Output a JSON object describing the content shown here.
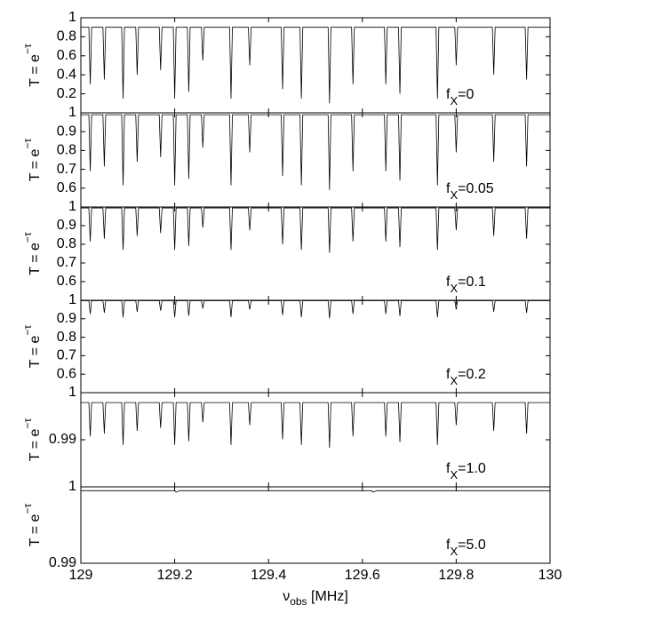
{
  "chart_data": [
    {
      "type": "line",
      "ylabel": [
        "T = e",
        "−τ"
      ],
      "annotation": [
        "f",
        "X",
        "=0"
      ],
      "xlim": [
        129,
        130
      ],
      "ylim": [
        0,
        1
      ],
      "yticks": [
        0.2,
        0.4,
        0.6,
        0.8,
        1
      ],
      "color": "#000000",
      "x": [
        129,
        129.017,
        129.02,
        129.023,
        129.047,
        129.05,
        129.053,
        129.087,
        129.09,
        129.093,
        129.117,
        129.12,
        129.123,
        129.167,
        129.17,
        129.173,
        129.197,
        129.2,
        129.203,
        129.227,
        129.23,
        129.233,
        129.257,
        129.26,
        129.263,
        129.317,
        129.32,
        129.323,
        129.357,
        129.36,
        129.363,
        129.427,
        129.43,
        129.433,
        129.467,
        129.47,
        129.473,
        129.527,
        129.53,
        129.533,
        129.577,
        129.58,
        129.583,
        129.647,
        129.65,
        129.653,
        129.677,
        129.68,
        129.683,
        129.757,
        129.76,
        129.763,
        129.797,
        129.8,
        129.803,
        129.877,
        129.88,
        129.883,
        129.947,
        129.95,
        129.953,
        130
      ],
      "values": [
        0.9,
        0.9,
        0.3,
        0.9,
        0.9,
        0.35,
        0.9,
        0.9,
        0.15,
        0.9,
        0.9,
        0.4,
        0.9,
        0.9,
        0.45,
        0.9,
        0.9,
        0.15,
        0.9,
        0.9,
        0.22,
        0.9,
        0.9,
        0.55,
        0.9,
        0.9,
        0.15,
        0.9,
        0.9,
        0.5,
        0.9,
        0.9,
        0.25,
        0.9,
        0.9,
        0.15,
        0.9,
        0.9,
        0.1,
        0.9,
        0.9,
        0.3,
        0.9,
        0.9,
        0.3,
        0.9,
        0.9,
        0.2,
        0.9,
        0.9,
        0.15,
        0.9,
        0.9,
        0.5,
        0.9,
        0.9,
        0.4,
        0.9,
        0.9,
        0.35,
        0.9,
        0.9
      ]
    },
    {
      "type": "line",
      "ylabel": [
        "T = e",
        "−τ"
      ],
      "annotation": [
        "f",
        "X",
        "=0.05"
      ],
      "xlim": [
        129,
        130
      ],
      "ylim": [
        0.5,
        1
      ],
      "yticks": [
        0.6,
        0.7,
        0.8,
        0.9,
        1
      ],
      "color": "#000000",
      "x": [
        129,
        129.017,
        129.02,
        129.023,
        129.047,
        129.05,
        129.053,
        129.087,
        129.09,
        129.093,
        129.117,
        129.12,
        129.123,
        129.167,
        129.17,
        129.173,
        129.197,
        129.2,
        129.203,
        129.227,
        129.23,
        129.233,
        129.257,
        129.26,
        129.263,
        129.317,
        129.32,
        129.323,
        129.357,
        129.36,
        129.363,
        129.427,
        129.43,
        129.433,
        129.467,
        129.47,
        129.473,
        129.527,
        129.53,
        129.533,
        129.577,
        129.58,
        129.583,
        129.647,
        129.65,
        129.653,
        129.677,
        129.68,
        129.683,
        129.757,
        129.76,
        129.763,
        129.797,
        129.8,
        129.803,
        129.877,
        129.88,
        129.883,
        129.947,
        129.95,
        129.953,
        130
      ],
      "values": [
        0.99,
        0.99,
        0.69,
        0.99,
        0.99,
        0.715,
        0.99,
        0.99,
        0.615,
        0.99,
        0.99,
        0.74,
        0.99,
        0.99,
        0.765,
        0.99,
        0.99,
        0.615,
        0.99,
        0.99,
        0.65,
        0.99,
        0.99,
        0.815,
        0.99,
        0.99,
        0.615,
        0.99,
        0.99,
        0.79,
        0.99,
        0.99,
        0.665,
        0.99,
        0.99,
        0.615,
        0.99,
        0.99,
        0.59,
        0.99,
        0.99,
        0.69,
        0.99,
        0.99,
        0.69,
        0.99,
        0.99,
        0.64,
        0.99,
        0.99,
        0.615,
        0.99,
        0.99,
        0.79,
        0.99,
        0.99,
        0.74,
        0.99,
        0.99,
        0.715,
        0.99,
        0.99
      ]
    },
    {
      "type": "line",
      "ylabel": [
        "T = e",
        "−τ"
      ],
      "annotation": [
        "f",
        "X",
        "=0.1"
      ],
      "xlim": [
        129,
        130
      ],
      "ylim": [
        0.5,
        1
      ],
      "yticks": [
        0.6,
        0.7,
        0.8,
        0.9,
        1
      ],
      "color": "#000000",
      "x": [
        129,
        129.017,
        129.02,
        129.023,
        129.047,
        129.05,
        129.053,
        129.087,
        129.09,
        129.093,
        129.117,
        129.12,
        129.123,
        129.167,
        129.17,
        129.173,
        129.197,
        129.2,
        129.203,
        129.227,
        129.23,
        129.233,
        129.257,
        129.26,
        129.263,
        129.317,
        129.32,
        129.323,
        129.357,
        129.36,
        129.363,
        129.427,
        129.43,
        129.433,
        129.467,
        129.47,
        129.473,
        129.527,
        129.53,
        129.533,
        129.577,
        129.58,
        129.583,
        129.647,
        129.65,
        129.653,
        129.677,
        129.68,
        129.683,
        129.757,
        129.76,
        129.763,
        129.797,
        129.8,
        129.803,
        129.877,
        129.88,
        129.883,
        129.947,
        129.95,
        129.953,
        130
      ],
      "values": [
        0.995,
        0.995,
        0.815,
        0.995,
        0.995,
        0.83,
        0.995,
        0.995,
        0.77,
        0.995,
        0.995,
        0.845,
        0.995,
        0.995,
        0.86,
        0.995,
        0.995,
        0.77,
        0.995,
        0.995,
        0.791,
        0.995,
        0.995,
        0.89,
        0.995,
        0.995,
        0.77,
        0.995,
        0.995,
        0.875,
        0.995,
        0.995,
        0.8,
        0.995,
        0.995,
        0.77,
        0.995,
        0.995,
        0.755,
        0.995,
        0.995,
        0.815,
        0.995,
        0.995,
        0.815,
        0.995,
        0.995,
        0.785,
        0.995,
        0.995,
        0.77,
        0.995,
        0.995,
        0.875,
        0.995,
        0.995,
        0.845,
        0.995,
        0.995,
        0.83,
        0.995,
        0.995
      ]
    },
    {
      "type": "line",
      "ylabel": [
        "T = e",
        "−τ"
      ],
      "annotation": [
        "f",
        "X",
        "=0.2"
      ],
      "xlim": [
        129,
        130
      ],
      "ylim": [
        0.5,
        1
      ],
      "yticks": [
        0.6,
        0.7,
        0.8,
        0.9,
        1
      ],
      "color": "#000000",
      "x": [
        129,
        129.017,
        129.02,
        129.023,
        129.047,
        129.05,
        129.053,
        129.087,
        129.09,
        129.093,
        129.117,
        129.12,
        129.123,
        129.167,
        129.17,
        129.173,
        129.197,
        129.2,
        129.203,
        129.227,
        129.23,
        129.233,
        129.257,
        129.26,
        129.263,
        129.317,
        129.32,
        129.323,
        129.357,
        129.36,
        129.363,
        129.427,
        129.43,
        129.433,
        129.467,
        129.47,
        129.473,
        129.527,
        129.53,
        129.533,
        129.577,
        129.58,
        129.583,
        129.647,
        129.65,
        129.653,
        129.677,
        129.68,
        129.683,
        129.757,
        129.76,
        129.763,
        129.797,
        129.8,
        129.803,
        129.877,
        129.88,
        129.883,
        129.947,
        129.95,
        129.953,
        130
      ],
      "values": [
        0.998,
        0.998,
        0.926,
        0.998,
        0.998,
        0.932,
        0.998,
        0.998,
        0.908,
        0.998,
        0.998,
        0.938,
        0.998,
        0.998,
        0.944,
        0.998,
        0.998,
        0.908,
        0.998,
        0.998,
        0.916,
        0.998,
        0.998,
        0.956,
        0.998,
        0.998,
        0.908,
        0.998,
        0.998,
        0.95,
        0.998,
        0.998,
        0.92,
        0.998,
        0.998,
        0.908,
        0.998,
        0.998,
        0.902,
        0.998,
        0.998,
        0.926,
        0.998,
        0.998,
        0.926,
        0.998,
        0.998,
        0.914,
        0.998,
        0.998,
        0.908,
        0.998,
        0.998,
        0.95,
        0.998,
        0.998,
        0.938,
        0.998,
        0.998,
        0.932,
        0.998,
        0.998
      ]
    },
    {
      "type": "line",
      "ylabel": [
        "T = e",
        "−τ"
      ],
      "annotation": [
        "f",
        "X",
        "=1.0"
      ],
      "xlim": [
        129,
        130
      ],
      "ylim": [
        0.98,
        1
      ],
      "yticks": [
        0.99,
        1
      ],
      "color": "#000000",
      "x": [
        129,
        129.017,
        129.02,
        129.023,
        129.047,
        129.05,
        129.053,
        129.087,
        129.09,
        129.093,
        129.117,
        129.12,
        129.123,
        129.167,
        129.17,
        129.173,
        129.197,
        129.2,
        129.203,
        129.227,
        129.23,
        129.233,
        129.257,
        129.26,
        129.263,
        129.317,
        129.32,
        129.323,
        129.357,
        129.36,
        129.363,
        129.427,
        129.43,
        129.433,
        129.467,
        129.47,
        129.473,
        129.527,
        129.53,
        129.533,
        129.577,
        129.58,
        129.583,
        129.647,
        129.65,
        129.653,
        129.677,
        129.68,
        129.683,
        129.757,
        129.76,
        129.763,
        129.797,
        129.8,
        129.803,
        129.877,
        129.88,
        129.883,
        129.947,
        129.95,
        129.953,
        130
      ],
      "values": [
        0.9979,
        0.9979,
        0.9907,
        0.9979,
        0.9979,
        0.9913,
        0.9979,
        0.9979,
        0.9889,
        0.9979,
        0.9979,
        0.9919,
        0.9979,
        0.9979,
        0.9925,
        0.9979,
        0.9979,
        0.9889,
        0.9979,
        0.9979,
        0.9897,
        0.9979,
        0.9979,
        0.9937,
        0.9979,
        0.9979,
        0.9889,
        0.9979,
        0.9979,
        0.9931,
        0.9979,
        0.9979,
        0.9901,
        0.9979,
        0.9979,
        0.9889,
        0.9979,
        0.9979,
        0.9883,
        0.9979,
        0.9979,
        0.9907,
        0.9979,
        0.9979,
        0.9907,
        0.9979,
        0.9979,
        0.9895,
        0.9979,
        0.9979,
        0.9889,
        0.9979,
        0.9979,
        0.9931,
        0.9979,
        0.9979,
        0.9919,
        0.9979,
        0.9979,
        0.9913,
        0.9979,
        0.9979
      ]
    },
    {
      "type": "line",
      "ylabel": [
        "T = e",
        "−τ"
      ],
      "annotation": [
        "f",
        "X",
        "=5.0"
      ],
      "xlabel": [
        "ν",
        "obs",
        " [MHz]"
      ],
      "xlim": [
        129,
        130
      ],
      "xticks": [
        129,
        129.2,
        129.4,
        129.6,
        129.8,
        130
      ],
      "ylim": [
        0.99,
        1
      ],
      "yticks": [
        0.99,
        1
      ],
      "color": "#000000",
      "x": [
        129,
        129.2,
        129.203,
        129.21,
        129.62,
        129.623,
        129.63,
        130
      ],
      "values": [
        0.9995,
        0.9995,
        0.9993,
        0.9995,
        0.9995,
        0.9993,
        0.9995,
        0.9995
      ]
    }
  ]
}
